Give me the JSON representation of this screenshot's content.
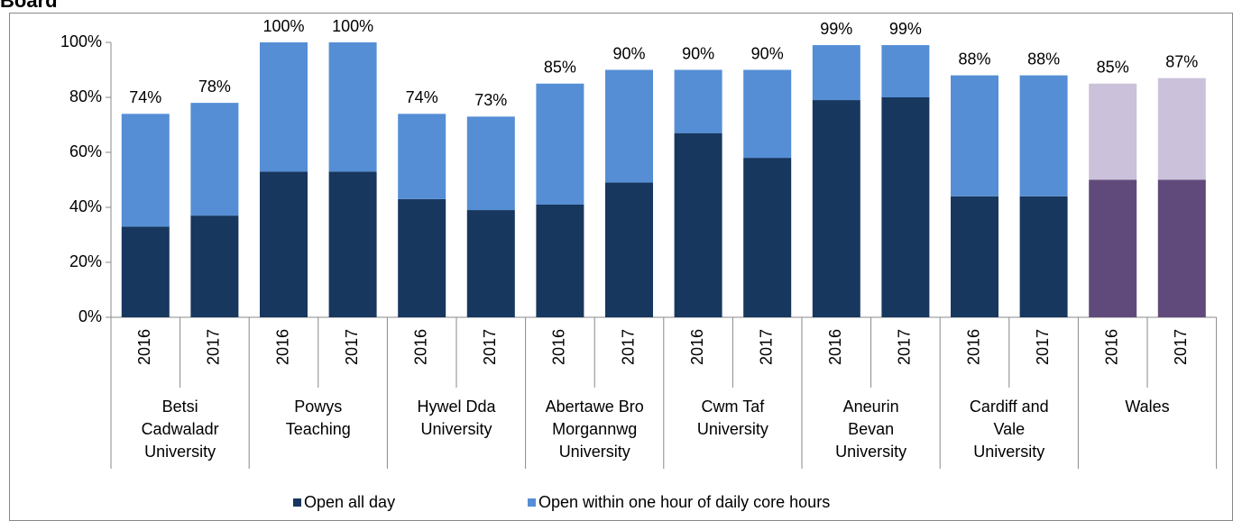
{
  "chart_data": {
    "type": "stacked_bar",
    "title": "Board",
    "groups": [
      {
        "label": [
          "Betsi",
          "Cadwaladr",
          "University"
        ],
        "categories": [
          "2016",
          "2017"
        ]
      },
      {
        "label": [
          "Powys",
          "Teaching"
        ],
        "categories": [
          "2016",
          "2017"
        ]
      },
      {
        "label": [
          "Hywel Dda",
          "University"
        ],
        "categories": [
          "2016",
          "2017"
        ]
      },
      {
        "label": [
          "Abertawe Bro",
          "Morgannwg",
          "University"
        ],
        "categories": [
          "2016",
          "2017"
        ]
      },
      {
        "label": [
          "Cwm Taf",
          "University"
        ],
        "categories": [
          "2016",
          "2017"
        ]
      },
      {
        "label": [
          "Aneurin",
          "Bevan",
          "University"
        ],
        "categories": [
          "2016",
          "2017"
        ]
      },
      {
        "label": [
          "Cardiff and",
          "Vale",
          "University"
        ],
        "categories": [
          "2016",
          "2017"
        ]
      },
      {
        "label": [
          "Wales"
        ],
        "categories": [
          "2016",
          "2017"
        ]
      }
    ],
    "series": [
      {
        "name": "Open all day",
        "color": "#17375e",
        "colors": [
          "#17375e",
          "#17375e",
          "#17375e",
          "#17375e",
          "#17375e",
          "#17375e",
          "#17375e",
          "#17375e",
          "#17375e",
          "#17375e",
          "#17375e",
          "#17375e",
          "#17375e",
          "#17375e",
          "#604a7b",
          "#604a7b"
        ],
        "values": [
          33,
          37,
          53,
          53,
          43,
          39,
          41,
          49,
          67,
          58,
          79,
          80,
          44,
          44,
          50,
          50
        ]
      },
      {
        "name": "Open within one hour of daily core hours",
        "color": "#558ed5",
        "colors": [
          "#558ed5",
          "#558ed5",
          "#558ed5",
          "#558ed5",
          "#558ed5",
          "#558ed5",
          "#558ed5",
          "#558ed5",
          "#558ed5",
          "#558ed5",
          "#558ed5",
          "#558ed5",
          "#558ed5",
          "#558ed5",
          "#ccc1da",
          "#ccc1da"
        ],
        "values": [
          41,
          41,
          47,
          47,
          31,
          34,
          44,
          41,
          23,
          32,
          20,
          19,
          44,
          44,
          35,
          37
        ]
      }
    ],
    "totals": {
      "values": [
        74,
        78,
        100,
        100,
        74,
        73,
        85,
        90,
        90,
        90,
        99,
        99,
        88,
        88,
        85,
        87
      ],
      "value_labels": [
        "74%",
        "78%",
        "100%",
        "100%",
        "74%",
        "73%",
        "85%",
        "90%",
        "90%",
        "90%",
        "99%",
        "99%",
        "88%",
        "88%",
        "85%",
        "87%"
      ]
    },
    "ylim": [
      0,
      100
    ],
    "yticks": [
      {
        "value": 0,
        "label": "0%"
      },
      {
        "value": 20,
        "label": "20%"
      },
      {
        "value": 40,
        "label": "40%"
      },
      {
        "value": 60,
        "label": "60%"
      },
      {
        "value": 80,
        "label": "80%"
      },
      {
        "value": 100,
        "label": "100%"
      }
    ],
    "legend": "bottom"
  }
}
